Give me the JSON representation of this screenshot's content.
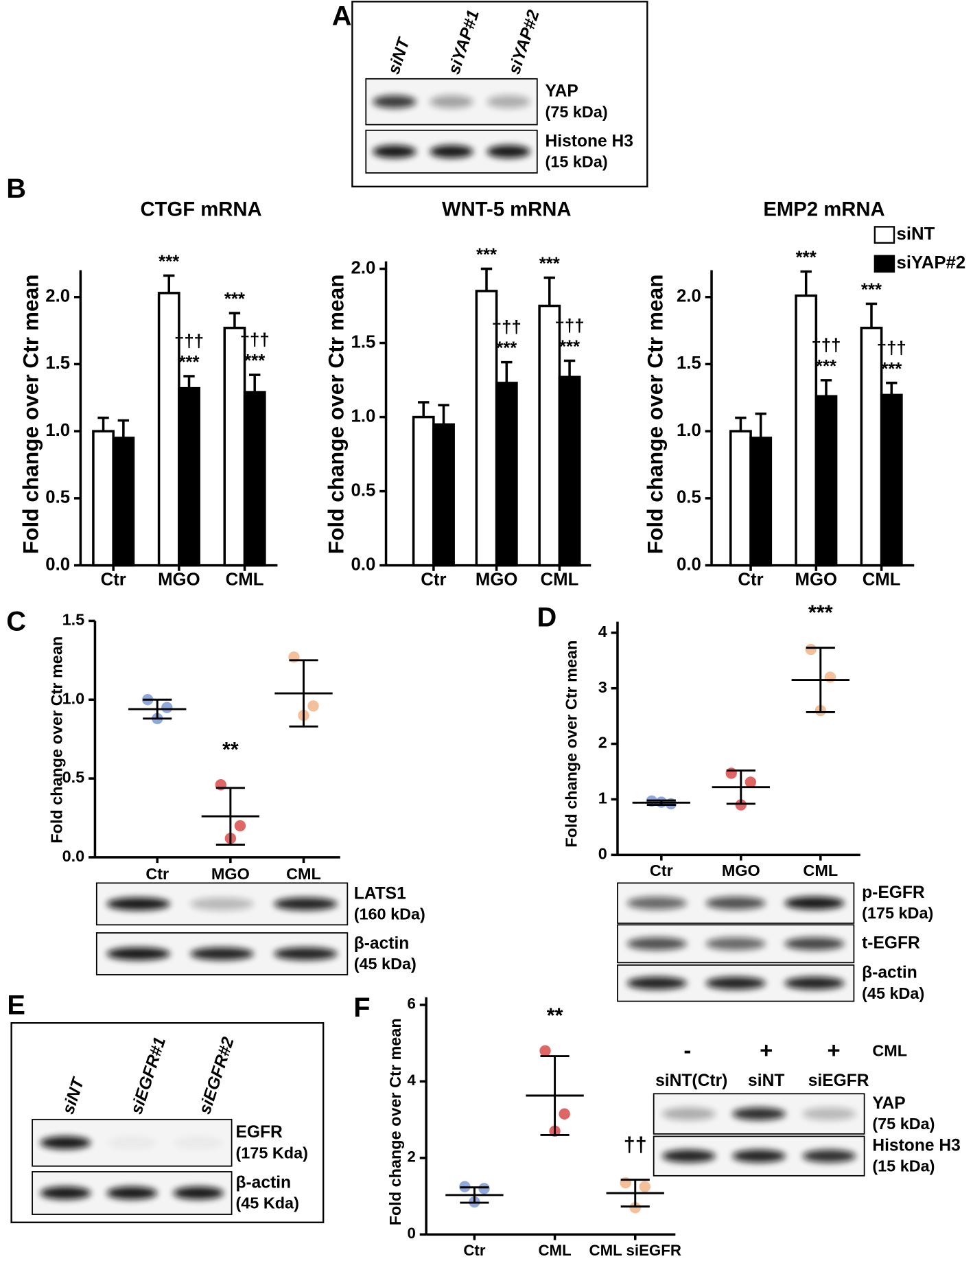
{
  "panel_labels": [
    "A",
    "B",
    "C",
    "D",
    "E",
    "F"
  ],
  "chart_data": [
    {
      "type": "bar",
      "title": "CTGF mRNA",
      "y_label": "Fold change over Ctr mean",
      "categories": [
        "Ctr",
        "MGO",
        "CML"
      ],
      "series": [
        {
          "name": "siNT",
          "color": "#ffffff",
          "values": [
            1.0,
            2.03,
            1.77
          ],
          "errors": [
            0.1,
            0.13,
            0.11
          ],
          "marks": [
            null,
            [
              "***"
            ],
            [
              "***"
            ]
          ]
        },
        {
          "name": "siYAP#2",
          "color": "#000000",
          "values": [
            0.95,
            1.32,
            1.29
          ],
          "errors": [
            0.13,
            0.09,
            0.13
          ],
          "marks": [
            null,
            [
              "†††",
              "***"
            ],
            [
              "†††",
              "***"
            ]
          ]
        }
      ],
      "ylim": [
        0,
        2.2
      ],
      "yticks": [
        {
          "value": 0,
          "label": "0.0"
        },
        {
          "value": 0.5,
          "label": "0.5"
        },
        {
          "value": 1,
          "label": "1.0"
        },
        {
          "value": 1.5,
          "label": "1.5"
        },
        {
          "value": 2,
          "label": "2.0"
        }
      ]
    },
    {
      "type": "bar",
      "title": "WNT-5 mRNA",
      "y_label": "Fold change over Ctr mean",
      "categories": [
        "Ctr",
        "MGO",
        "CML"
      ],
      "series": [
        {
          "name": "siNT",
          "color": "#ffffff",
          "values": [
            1.0,
            1.85,
            1.75
          ],
          "errors": [
            0.1,
            0.15,
            0.19
          ],
          "marks": [
            null,
            [
              "***"
            ],
            [
              "***"
            ]
          ]
        },
        {
          "name": "siYAP#2",
          "color": "#000000",
          "values": [
            0.95,
            1.23,
            1.27
          ],
          "errors": [
            0.13,
            0.14,
            0.11
          ],
          "marks": [
            null,
            [
              "†††",
              "***"
            ],
            [
              "†††",
              "***"
            ]
          ]
        }
      ],
      "ylim": [
        0,
        2.05
      ],
      "yticks": [
        {
          "value": 0,
          "label": "0.0"
        },
        {
          "value": 0.5,
          "label": "0.5"
        },
        {
          "value": 1,
          "label": "1.0"
        },
        {
          "value": 1.5,
          "label": "1.5"
        },
        {
          "value": 2,
          "label": "2.0"
        }
      ]
    },
    {
      "type": "bar",
      "title": "EMP2 mRNA",
      "y_label": "Fold change over Ctr mean",
      "categories": [
        "Ctr",
        "MGO",
        "CML"
      ],
      "series": [
        {
          "name": "siNT",
          "color": "#ffffff",
          "values": [
            1.0,
            2.01,
            1.77
          ],
          "errors": [
            0.1,
            0.18,
            0.18
          ],
          "marks": [
            null,
            [
              "***"
            ],
            [
              "***"
            ]
          ]
        },
        {
          "name": "siYAP#2",
          "color": "#000000",
          "values": [
            0.95,
            1.26,
            1.27
          ],
          "errors": [
            0.18,
            0.12,
            0.09
          ],
          "marks": [
            null,
            [
              "†††",
              "***"
            ],
            [
              "†††",
              "***"
            ]
          ]
        }
      ],
      "legend": "upper right",
      "ylim": [
        0,
        2.2
      ],
      "yticks": [
        {
          "value": 0,
          "label": "0.0"
        },
        {
          "value": 0.5,
          "label": "0.5"
        },
        {
          "value": 1,
          "label": "1.0"
        },
        {
          "value": 1.5,
          "label": "1.5"
        },
        {
          "value": 2,
          "label": "2.0"
        }
      ]
    },
    {
      "type": "dot",
      "y_label": "Fold change over Ctr mean",
      "categories": [
        "Ctr",
        "MGO",
        "CML"
      ],
      "colors": [
        "#8fa9dc",
        "#e06666",
        "#f4c09a"
      ],
      "points": [
        [
          1.0,
          0.95,
          0.88
        ],
        [
          0.46,
          0.2,
          0.12
        ],
        [
          1.27,
          0.96,
          0.9
        ]
      ],
      "mean": [
        0.94,
        0.26,
        1.04
      ],
      "sd": [
        0.06,
        0.18,
        0.21
      ],
      "marks": [
        null,
        "**",
        null
      ],
      "ylim": [
        0,
        1.5
      ],
      "yticks": [
        {
          "value": 0,
          "label": "0.0"
        },
        {
          "value": 0.5,
          "label": "0.5"
        },
        {
          "value": 1,
          "label": "1.0"
        },
        {
          "value": 1.5,
          "label": "1.5"
        }
      ]
    },
    {
      "type": "dot",
      "y_label": "Fold change over Ctr mean",
      "categories": [
        "Ctr",
        "MGO",
        "CML"
      ],
      "colors": [
        "#8fa9dc",
        "#e06666",
        "#f4c09a"
      ],
      "points": [
        [
          0.97,
          0.92,
          0.95
        ],
        [
          1.47,
          1.31,
          0.9
        ],
        [
          3.7,
          3.2,
          2.6
        ]
      ],
      "mean": [
        0.94,
        1.22,
        3.15
      ],
      "sd": [
        0.04,
        0.3,
        0.58
      ],
      "marks": [
        null,
        null,
        "***"
      ],
      "ylim": [
        0,
        4.2
      ],
      "yticks": [
        0,
        1,
        2,
        3,
        4
      ]
    },
    {
      "type": "dot",
      "y_label": "Fold change over Ctr mean",
      "categories": [
        "Ctr",
        "CML",
        "CML siEGFR"
      ],
      "colors": [
        "#8fa9dc",
        "#e06666",
        "#f4c09a"
      ],
      "points": [
        [
          1.25,
          1.2,
          0.85
        ],
        [
          4.8,
          3.15,
          2.7
        ],
        [
          1.35,
          1.25,
          0.7
        ]
      ],
      "mean": [
        1.03,
        3.63,
        1.08
      ],
      "sd": [
        0.2,
        1.03,
        0.35
      ],
      "marks": [
        null,
        "**",
        "††"
      ],
      "ylim": [
        0,
        6.2
      ],
      "yticks": [
        0,
        2,
        4,
        6
      ]
    }
  ],
  "blots": [
    {
      "lanes": [
        "siNT",
        "siYAP#1",
        "siYAP#2"
      ],
      "bands": [
        {
          "name": "YAP",
          "size": "(75 kDa)"
        },
        {
          "name": "Histone H3",
          "size": "(15 kDa)"
        }
      ]
    },
    {
      "bands": [
        {
          "name": "LATS1",
          "size": "(160 kDa)"
        },
        {
          "name": "β-actin",
          "size": "(45 kDa)"
        }
      ]
    },
    {
      "bands": [
        {
          "name": "p-EGFR",
          "size": "(175 kDa)"
        },
        {
          "name": "t-EGFR"
        },
        {
          "name": "β-actin",
          "size": "(45 kDa)"
        }
      ]
    },
    {
      "lanes": [
        "siNT",
        "siEGFR#1",
        "siEGFR#2"
      ],
      "bands": [
        {
          "name": "EGFR",
          "size": "(175 Kda)"
        },
        {
          "name": "β-actin",
          "size": "(45 Kda)"
        }
      ]
    },
    {
      "treatment": {
        "signs": [
          "-",
          "+",
          "+"
        ],
        "label": "CML"
      },
      "lanes": [
        "siNT(Ctr)",
        "siNT",
        "siEGFR"
      ],
      "bands": [
        {
          "name": "YAP",
          "size": "(75 kDa)"
        },
        {
          "name": "Histone H3",
          "size": "(15 kDa)"
        }
      ]
    }
  ]
}
